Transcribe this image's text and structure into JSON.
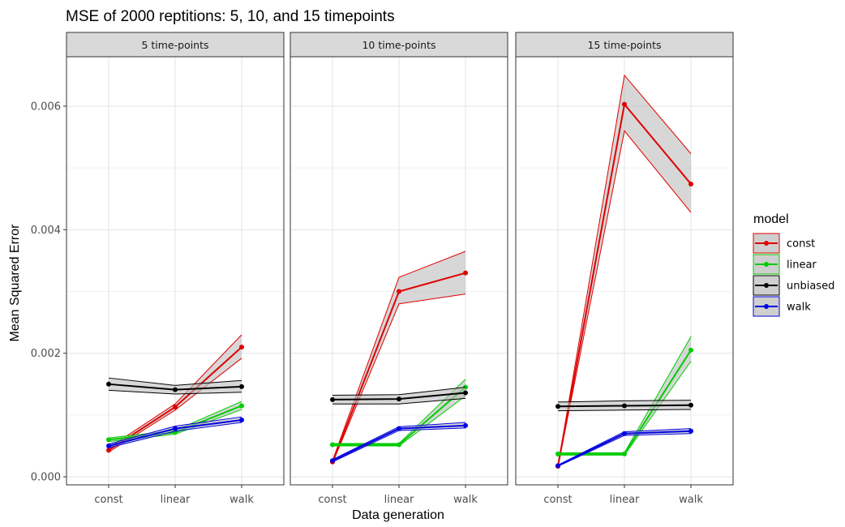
{
  "chart_data": {
    "type": "line",
    "title": "MSE of 2000 reptitions: 5, 10, and 15 timepoints",
    "xlabel": "Data generation",
    "ylabel": "Mean Squared Error",
    "categories": [
      "const",
      "linear",
      "walk"
    ],
    "yticks": [
      "0.000",
      "0.002",
      "0.004",
      "0.006"
    ],
    "ytick_values": [
      0,
      0.002,
      0.004,
      0.006
    ],
    "ylim": [
      -0.00013,
      0.0068
    ],
    "grid": true,
    "legend": {
      "title": "model",
      "placement": "right",
      "entries": [
        "const",
        "linear",
        "unbiased",
        "walk"
      ]
    },
    "colors": {
      "const": "#e00000",
      "linear": "#00cc00",
      "unbiased": "#000000",
      "walk": "#0000e0"
    },
    "panels": [
      {
        "label": "5 time-points",
        "series": [
          {
            "name": "const",
            "values": [
              0.00043,
              0.00113,
              0.0021
            ],
            "lower": [
              0.0004,
              0.00108,
              0.00192
            ],
            "upper": [
              0.00047,
              0.00118,
              0.0023
            ]
          },
          {
            "name": "linear",
            "values": [
              0.0006,
              0.00072,
              0.00115
            ],
            "lower": [
              0.00057,
              0.00069,
              0.00109
            ],
            "upper": [
              0.00063,
              0.00075,
              0.00122
            ]
          },
          {
            "name": "unbiased",
            "values": [
              0.0015,
              0.00141,
              0.00146
            ],
            "lower": [
              0.0014,
              0.00134,
              0.00137
            ],
            "upper": [
              0.0016,
              0.00148,
              0.00156
            ]
          },
          {
            "name": "walk",
            "values": [
              0.0005,
              0.00078,
              0.00092
            ],
            "lower": [
              0.00047,
              0.00074,
              0.00088
            ],
            "upper": [
              0.00053,
              0.00082,
              0.00097
            ]
          }
        ]
      },
      {
        "label": "10 time-points",
        "series": [
          {
            "name": "const",
            "values": [
              0.00024,
              0.003,
              0.0033
            ],
            "lower": [
              0.00022,
              0.0028,
              0.00296
            ],
            "upper": [
              0.00026,
              0.00323,
              0.00365
            ]
          },
          {
            "name": "linear",
            "values": [
              0.00052,
              0.00052,
              0.00145
            ],
            "lower": [
              0.0005,
              0.0005,
              0.00131
            ],
            "upper": [
              0.00054,
              0.00054,
              0.00158
            ]
          },
          {
            "name": "unbiased",
            "values": [
              0.00125,
              0.00126,
              0.00136
            ],
            "lower": [
              0.00118,
              0.00118,
              0.00127
            ],
            "upper": [
              0.00132,
              0.00133,
              0.00145
            ]
          },
          {
            "name": "walk",
            "values": [
              0.00026,
              0.00078,
              0.00083
            ],
            "lower": [
              0.00024,
              0.00075,
              0.00079
            ],
            "upper": [
              0.00028,
              0.00081,
              0.00088
            ]
          }
        ]
      },
      {
        "label": "15 time-points",
        "series": [
          {
            "name": "const",
            "values": [
              0.00017,
              0.00603,
              0.00474
            ],
            "lower": [
              0.00016,
              0.0056,
              0.00428
            ],
            "upper": [
              0.00018,
              0.0065,
              0.00523
            ]
          },
          {
            "name": "linear",
            "values": [
              0.00037,
              0.00037,
              0.00205
            ],
            "lower": [
              0.00035,
              0.00035,
              0.00187
            ],
            "upper": [
              0.00039,
              0.00039,
              0.00227
            ]
          },
          {
            "name": "unbiased",
            "values": [
              0.00114,
              0.00115,
              0.00116
            ],
            "lower": [
              0.00107,
              0.00108,
              0.00109
            ],
            "upper": [
              0.00121,
              0.00123,
              0.00124
            ]
          },
          {
            "name": "walk",
            "values": [
              0.00018,
              0.0007,
              0.00074
            ],
            "lower": [
              0.00017,
              0.00067,
              0.0007
            ],
            "upper": [
              0.00019,
              0.00073,
              0.00078
            ]
          }
        ]
      }
    ]
  }
}
